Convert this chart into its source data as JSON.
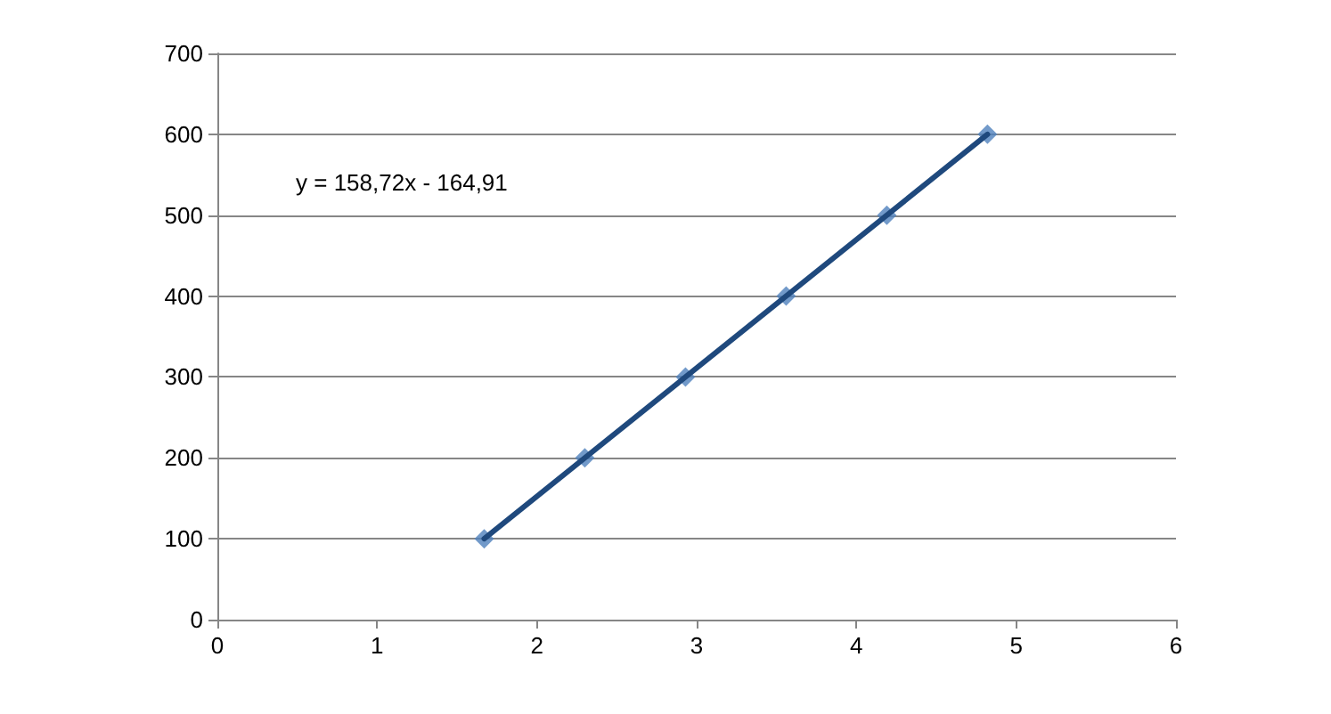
{
  "chart_data": {
    "type": "scatter",
    "marker": "diamond",
    "grid": "y",
    "xlim": [
      0,
      6
    ],
    "xticks": [
      0,
      1,
      2,
      3,
      4,
      5,
      6
    ],
    "ylim": [
      0,
      700
    ],
    "yticks": [
      0,
      100,
      200,
      300,
      400,
      500,
      600,
      700
    ],
    "annotations": [
      "y = 158,72x - 164,91"
    ],
    "series": [
      {
        "color": "#4f81bd",
        "x": [
          1.67,
          2.3,
          2.93,
          3.56,
          4.19,
          4.82
        ],
        "values": [
          100,
          200,
          300,
          400,
          500,
          600
        ]
      },
      {
        "type": "line",
        "marker": "none",
        "color": "#1f497d",
        "x": [
          1.67,
          4.82
        ],
        "values": [
          100,
          600
        ]
      }
    ]
  }
}
